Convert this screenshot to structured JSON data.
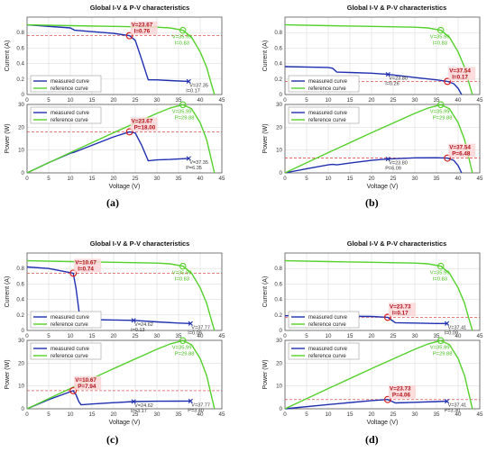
{
  "legend": {
    "measured": "measured curve",
    "reference": "reference curve"
  },
  "colors": {
    "measured": "#1f2fb0",
    "reference": "#55d12b",
    "marker_red": "#d62020",
    "marker_green": "#55d12b",
    "annot_red": "#b0101a",
    "annot_green": "#44c01a",
    "hline": "#e05050",
    "grid": "#dddddd",
    "axis": "#444444",
    "annot_bg": "#fbd6d6"
  },
  "chart_data": [
    {
      "panel": "a",
      "caption": "(a)",
      "title": "Global I-V & P-V characteristics",
      "iv": {
        "type": "line",
        "xlabel": "",
        "ylabel": "Current (A)",
        "xlim": [
          0,
          45
        ],
        "ylim": [
          0,
          1
        ],
        "xticks": [
          0,
          5,
          10,
          15,
          20,
          25,
          30,
          35,
          40,
          45
        ],
        "yticks": [
          0,
          0.2,
          0.4,
          0.6,
          0.8
        ],
        "grid": true,
        "legend_position": "bottom-left",
        "series": [
          {
            "name": "measured curve",
            "x": [
              0,
              10,
              11,
              20,
              23.67,
              25,
              26.5,
              28,
              30,
              33,
              37.35
            ],
            "y": [
              0.9,
              0.86,
              0.83,
              0.79,
              0.76,
              0.7,
              0.45,
              0.19,
              0.19,
              0.18,
              0.17
            ]
          },
          {
            "name": "reference curve",
            "x": [
              0,
              10,
              20,
              30,
              33,
              35.99,
              38,
              40,
              41.5,
              42.5,
              43.3
            ],
            "y": [
              0.9,
              0.89,
              0.88,
              0.87,
              0.86,
              0.83,
              0.74,
              0.55,
              0.35,
              0.15,
              0
            ]
          }
        ],
        "annotations": [
          {
            "kind": "mpp",
            "x": 23.67,
            "y": 0.76,
            "lines": [
              "V=23.67",
              "I=0.76"
            ]
          },
          {
            "kind": "ref",
            "x": 35.99,
            "y": 0.83,
            "lines": [
              "V=35.99",
              "I=0.83"
            ]
          },
          {
            "kind": "end",
            "x": 37.35,
            "y": 0.17,
            "lines": [
              "V=37.35",
              "I=0.17"
            ]
          }
        ],
        "hline": 0.76
      },
      "pv": {
        "type": "line",
        "xlabel": "Voltage (V)",
        "ylabel": "Power (W)",
        "xlim": [
          0,
          45
        ],
        "ylim": [
          0,
          30
        ],
        "xticks": [
          0,
          5,
          10,
          15,
          20,
          25,
          30,
          35,
          40,
          45
        ],
        "yticks": [
          0,
          10,
          20,
          30
        ],
        "grid": true,
        "legend_position": "top-left",
        "series": [
          {
            "name": "measured curve",
            "x": [
              0,
              5,
              10,
              11,
              20,
              23.67,
              25,
              26.5,
              28,
              30,
              33,
              37.35
            ],
            "y": [
              0,
              4.5,
              8.6,
              9.1,
              15.8,
              18,
              17.5,
              12,
              5.3,
              5.7,
              5.9,
              6.35
            ]
          },
          {
            "name": "reference curve",
            "x": [
              0,
              10,
              20,
              30,
              33,
              35.99,
              38,
              40,
              41.5,
              42.5,
              43.3
            ],
            "y": [
              0,
              8.9,
              17.6,
              26.1,
              28.4,
              29.88,
              28.1,
              22,
              14.5,
              6.4,
              0
            ]
          }
        ],
        "annotations": [
          {
            "kind": "mpp",
            "x": 23.67,
            "y": 18,
            "lines": [
              "V=23.67",
              "P=18.00"
            ]
          },
          {
            "kind": "ref",
            "x": 35.99,
            "y": 29.88,
            "lines": [
              "V=35.99",
              "P=29.88"
            ]
          },
          {
            "kind": "end",
            "x": 37.35,
            "y": 6.35,
            "lines": [
              "V=37.35",
              "P=6.35"
            ]
          }
        ],
        "hline": 18
      }
    },
    {
      "panel": "b",
      "caption": "(b)",
      "title": "Global I-V & P-V characteristics",
      "iv": {
        "type": "line",
        "xlabel": "",
        "ylabel": "Current (A)",
        "xlim": [
          0,
          45
        ],
        "ylim": [
          0,
          1
        ],
        "xticks": [
          0,
          5,
          10,
          15,
          20,
          25,
          30,
          35,
          40,
          45
        ],
        "yticks": [
          0,
          0.2,
          0.4,
          0.6,
          0.8
        ],
        "grid": true,
        "legend_position": "bottom-left",
        "series": [
          {
            "name": "measured curve",
            "x": [
              0,
              10,
              11,
              12,
              15,
              20,
              23.8,
              30,
              35,
              37.54,
              39,
              40,
              40.8
            ],
            "y": [
              0.36,
              0.35,
              0.34,
              0.29,
              0.285,
              0.275,
              0.26,
              0.22,
              0.19,
              0.17,
              0.14,
              0.08,
              0
            ]
          },
          {
            "name": "reference curve",
            "x": [
              0,
              10,
              20,
              30,
              33,
              35.99,
              38,
              40,
              41.5,
              42.5,
              43.3
            ],
            "y": [
              0.9,
              0.89,
              0.88,
              0.87,
              0.86,
              0.83,
              0.74,
              0.55,
              0.35,
              0.15,
              0
            ]
          }
        ],
        "annotations": [
          {
            "kind": "mpp",
            "x": 37.54,
            "y": 0.17,
            "lines": [
              "V=37.54",
              "I=0.17"
            ]
          },
          {
            "kind": "ref",
            "x": 35.99,
            "y": 0.83,
            "lines": [
              "V=35.99",
              "I=0.83"
            ]
          },
          {
            "kind": "end",
            "x": 23.8,
            "y": 0.26,
            "lines": [
              "V=23.80",
              "I=0.26"
            ]
          }
        ],
        "hline": 0.17
      },
      "pv": {
        "type": "line",
        "xlabel": "Voltage (V)",
        "ylabel": "Power (W)",
        "xlim": [
          0,
          45
        ],
        "ylim": [
          0,
          30
        ],
        "xticks": [
          0,
          5,
          10,
          15,
          20,
          25,
          30,
          35,
          40,
          45
        ],
        "yticks": [
          0,
          10,
          20,
          30
        ],
        "grid": true,
        "legend_position": "top-left",
        "series": [
          {
            "name": "measured curve",
            "x": [
              0,
              5,
              10,
              11,
              12,
              15,
              20,
              23.8,
              30,
              35,
              37.54,
              39,
              40,
              40.8
            ],
            "y": [
              0,
              1.8,
              3.5,
              3.7,
              3.5,
              4.3,
              5.5,
              6.09,
              6.6,
              6.65,
              6.48,
              5.5,
              3.2,
              0
            ]
          },
          {
            "name": "reference curve",
            "x": [
              0,
              10,
              20,
              30,
              33,
              35.99,
              38,
              40,
              41.5,
              42.5,
              43.3
            ],
            "y": [
              0,
              8.9,
              17.6,
              26.1,
              28.4,
              29.88,
              28.1,
              22,
              14.5,
              6.4,
              0
            ]
          }
        ],
        "annotations": [
          {
            "kind": "mpp",
            "x": 37.54,
            "y": 6.48,
            "lines": [
              "V=37.54",
              "P=6.48"
            ]
          },
          {
            "kind": "ref",
            "x": 35.99,
            "y": 29.88,
            "lines": [
              "V=35.99",
              "P=29.88"
            ]
          },
          {
            "kind": "end",
            "x": 23.8,
            "y": 6.09,
            "lines": [
              "V=23.80",
              "P=6.09"
            ]
          }
        ],
        "hline": 6.48
      }
    },
    {
      "panel": "c",
      "caption": "(c)",
      "title": "Global I-V & P-V characteristics",
      "iv": {
        "type": "line",
        "xlabel": "",
        "ylabel": "Current (A)",
        "xlim": [
          0,
          45
        ],
        "ylim": [
          0,
          1
        ],
        "xticks": [
          0,
          5,
          10,
          15,
          20,
          25,
          30,
          35,
          40,
          45
        ],
        "yticks": [
          0,
          0.2,
          0.4,
          0.6,
          0.8
        ],
        "grid": true,
        "legend_position": "bottom-left",
        "series": [
          {
            "name": "measured curve",
            "x": [
              0,
              5,
              10.67,
              11.3,
              12,
              12.5,
              15,
              20,
              24.62,
              30,
              35,
              37.77
            ],
            "y": [
              0.82,
              0.8,
              0.74,
              0.55,
              0.25,
              0.14,
              0.14,
              0.135,
              0.13,
              0.11,
              0.095,
              0.09
            ]
          },
          {
            "name": "reference curve",
            "x": [
              0,
              10,
              20,
              30,
              33,
              35.99,
              38,
              40,
              41.5,
              42.5,
              43.3
            ],
            "y": [
              0.9,
              0.89,
              0.88,
              0.87,
              0.86,
              0.83,
              0.74,
              0.55,
              0.35,
              0.15,
              0
            ]
          }
        ],
        "annotations": [
          {
            "kind": "mpp",
            "x": 10.67,
            "y": 0.74,
            "lines": [
              "V=10.67",
              "I=0.74"
            ]
          },
          {
            "kind": "ref",
            "x": 35.99,
            "y": 0.83,
            "lines": [
              "V=35.99",
              "I=0.83"
            ]
          },
          {
            "kind": "end",
            "x": 24.62,
            "y": 0.13,
            "lines": [
              "V=24.62",
              "I=0.13"
            ]
          },
          {
            "kind": "end",
            "x": 37.77,
            "y": 0.09,
            "lines": [
              "V=37.77",
              "I=0.09"
            ]
          }
        ],
        "hline": 0.74
      },
      "pv": {
        "type": "line",
        "xlabel": "Voltage (V)",
        "ylabel": "Power (W)",
        "xlim": [
          0,
          45
        ],
        "ylim": [
          0,
          30
        ],
        "xticks": [
          0,
          5,
          10,
          15,
          20,
          25,
          30,
          35,
          40,
          45
        ],
        "yticks": [
          0,
          10,
          20,
          30
        ],
        "grid": true,
        "legend_position": "top-left",
        "series": [
          {
            "name": "measured curve",
            "x": [
              0,
              5,
              10.67,
              11.3,
              12,
              12.5,
              15,
              20,
              24.62,
              30,
              35,
              37.77
            ],
            "y": [
              0,
              4,
              7.94,
              6.2,
              3,
              1.75,
              2.1,
              2.7,
              3.17,
              3.3,
              3.35,
              3.4
            ]
          },
          {
            "name": "reference curve",
            "x": [
              0,
              10,
              20,
              30,
              33,
              35.99,
              38,
              40,
              41.5,
              42.5,
              43.3
            ],
            "y": [
              0,
              8.9,
              17.6,
              26.1,
              28.4,
              29.88,
              28.1,
              22,
              14.5,
              6.4,
              0
            ]
          }
        ],
        "annotations": [
          {
            "kind": "mpp",
            "x": 10.67,
            "y": 7.94,
            "lines": [
              "V=10.67",
              "P=7.94"
            ]
          },
          {
            "kind": "ref",
            "x": 35.99,
            "y": 29.88,
            "lines": [
              "V=35.99",
              "P=29.88"
            ]
          },
          {
            "kind": "end",
            "x": 24.62,
            "y": 3.17,
            "lines": [
              "V=24.62",
              "P=3.17"
            ]
          },
          {
            "kind": "end",
            "x": 37.77,
            "y": 3.4,
            "lines": [
              "V=37.77",
              "P=3.40"
            ]
          }
        ],
        "hline": 7.94
      }
    },
    {
      "panel": "d",
      "caption": "(d)",
      "title": "Global I-V & P-V characteristics",
      "iv": {
        "type": "line",
        "xlabel": "",
        "ylabel": "Current (A)",
        "xlim": [
          0,
          45
        ],
        "ylim": [
          0,
          1
        ],
        "xticks": [
          0,
          5,
          10,
          15,
          20,
          25,
          30,
          35,
          40,
          45
        ],
        "yticks": [
          0,
          0.2,
          0.4,
          0.6,
          0.8
        ],
        "grid": true,
        "legend_position": "bottom-left",
        "series": [
          {
            "name": "measured curve",
            "x": [
              0,
              10,
              20,
              23.73,
              24.5,
              25.5,
              30,
              35,
              37.41
            ],
            "y": [
              0.19,
              0.185,
              0.18,
              0.17,
              0.14,
              0.1,
              0.095,
              0.09,
              0.09
            ]
          },
          {
            "name": "reference curve",
            "x": [
              0,
              10,
              20,
              30,
              33,
              35.99,
              38,
              40,
              41.5,
              42.5,
              43.3
            ],
            "y": [
              0.9,
              0.89,
              0.88,
              0.87,
              0.86,
              0.83,
              0.74,
              0.55,
              0.35,
              0.15,
              0
            ]
          }
        ],
        "annotations": [
          {
            "kind": "mpp",
            "x": 23.73,
            "y": 0.17,
            "lines": [
              "V=23.73",
              "I=0.17"
            ]
          },
          {
            "kind": "ref",
            "x": 35.99,
            "y": 0.83,
            "lines": [
              "V=35.99",
              "I=0.83"
            ]
          },
          {
            "kind": "end",
            "x": 37.41,
            "y": 0.09,
            "lines": [
              "V=37.41",
              "I=0.09"
            ]
          }
        ],
        "hline": 0.17
      },
      "pv": {
        "type": "line",
        "xlabel": "Voltage (V)",
        "ylabel": "Power (W)",
        "xlim": [
          0,
          45
        ],
        "ylim": [
          0,
          30
        ],
        "xticks": [
          0,
          5,
          10,
          15,
          20,
          25,
          30,
          35,
          40,
          45
        ],
        "yticks": [
          0,
          10,
          20,
          30
        ],
        "grid": true,
        "legend_position": "top-left",
        "series": [
          {
            "name": "measured curve",
            "x": [
              0,
              10,
              20,
              23.73,
              24.5,
              25.5,
              30,
              35,
              37.41
            ],
            "y": [
              0,
              1.85,
              3.6,
              4.06,
              3.4,
              2.55,
              2.85,
              3.15,
              3.3
            ]
          },
          {
            "name": "reference curve",
            "x": [
              0,
              10,
              20,
              30,
              33,
              35.99,
              38,
              40,
              41.5,
              42.5,
              43.3
            ],
            "y": [
              0,
              8.9,
              17.6,
              26.1,
              28.4,
              29.88,
              28.1,
              22,
              14.5,
              6.4,
              0
            ]
          }
        ],
        "annotations": [
          {
            "kind": "mpp",
            "x": 23.73,
            "y": 4.06,
            "lines": [
              "V=23.73",
              "P=4.06"
            ]
          },
          {
            "kind": "ref",
            "x": 35.99,
            "y": 29.88,
            "lines": [
              "V=35.99",
              "P=29.88"
            ]
          },
          {
            "kind": "end",
            "x": 37.41,
            "y": 3.3,
            "lines": [
              "V=37.41",
              "P=3.30"
            ]
          }
        ],
        "hline": 4.06
      }
    }
  ]
}
